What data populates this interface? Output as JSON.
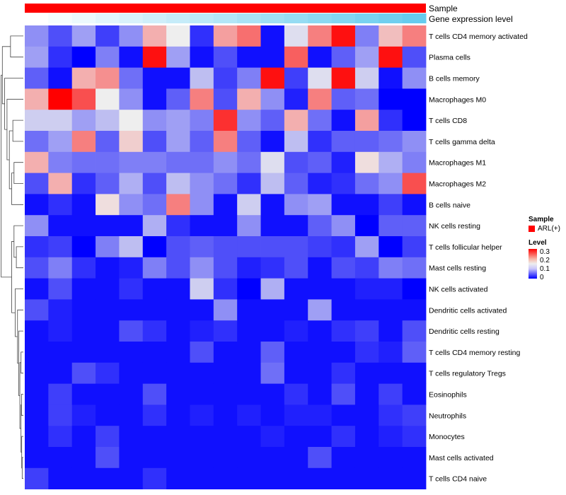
{
  "chart_data": {
    "type": "heatmap",
    "title": "",
    "annotation_tracks": [
      {
        "name": "Sample",
        "color": "#ff0000"
      },
      {
        "name": "Gene expression level",
        "gradient": [
          "#ffffff",
          "#66ccee"
        ]
      }
    ],
    "rows": [
      "T cells CD4 memory activated",
      "Plasma cells",
      "B cells memory",
      "Macrophages M0",
      "T cells CD8",
      "T cells gamma delta",
      "Macrophages M1",
      "Macrophages M2",
      "B cells naive",
      "NK cells resting",
      "T cells follicular helper",
      "Mast cells resting",
      "NK cells activated",
      "Dendritic cells activated",
      "Dendritic cells resting",
      "T cells CD4 memory resting",
      "T cells regulatory  Tregs",
      "Eosinophils",
      "Neutrophils",
      "Monocytes",
      "Mast cells activated",
      "T cells CD4 naive"
    ],
    "values": [
      [
        0.09,
        0.05,
        0.1,
        0.04,
        0.09,
        0.19,
        0.15,
        0.03,
        0.2,
        0.23,
        0.01,
        0.14,
        0.22,
        0.29,
        0.08,
        0.18,
        0.22
      ],
      [
        0.1,
        0.03,
        0.0,
        0.08,
        0.01,
        0.29,
        0.1,
        0.01,
        0.05,
        0.01,
        0.01,
        0.24,
        0.01,
        0.06,
        0.1,
        0.29,
        0.05
      ],
      [
        0.06,
        0.01,
        0.19,
        0.21,
        0.07,
        0.01,
        0.01,
        0.12,
        0.04,
        0.08,
        0.29,
        0.04,
        0.14,
        0.29,
        0.13,
        0.01,
        0.09
      ],
      [
        0.19,
        0.3,
        0.25,
        0.15,
        0.09,
        0.01,
        0.06,
        0.22,
        0.05,
        0.19,
        0.09,
        0.02,
        0.22,
        0.06,
        0.07,
        0.0,
        0.0
      ],
      [
        0.13,
        0.13,
        0.1,
        0.12,
        0.15,
        0.09,
        0.1,
        0.08,
        0.27,
        0.09,
        0.06,
        0.19,
        0.07,
        0.01,
        0.2,
        0.03,
        0.0
      ],
      [
        0.07,
        0.1,
        0.22,
        0.06,
        0.17,
        0.05,
        0.1,
        0.06,
        0.22,
        0.06,
        0.01,
        0.12,
        0.03,
        0.06,
        0.06,
        0.07,
        0.09
      ],
      [
        0.19,
        0.08,
        0.07,
        0.07,
        0.08,
        0.08,
        0.07,
        0.07,
        0.09,
        0.07,
        0.14,
        0.05,
        0.06,
        0.02,
        0.16,
        0.11,
        0.08
      ],
      [
        0.05,
        0.19,
        0.03,
        0.06,
        0.11,
        0.05,
        0.12,
        0.09,
        0.07,
        0.03,
        0.12,
        0.06,
        0.02,
        0.03,
        0.07,
        0.09,
        0.25
      ],
      [
        0.01,
        0.03,
        0.01,
        0.16,
        0.09,
        0.07,
        0.22,
        0.09,
        0.01,
        0.13,
        0.01,
        0.09,
        0.1,
        0.01,
        0.01,
        0.04,
        0.01
      ],
      [
        0.09,
        0.01,
        0.01,
        0.01,
        0.01,
        0.11,
        0.03,
        0.01,
        0.01,
        0.09,
        0.01,
        0.01,
        0.06,
        0.09,
        0.0,
        0.06,
        0.06
      ],
      [
        0.03,
        0.04,
        0.0,
        0.08,
        0.12,
        0.0,
        0.05,
        0.06,
        0.05,
        0.05,
        0.05,
        0.05,
        0.04,
        0.03,
        0.1,
        0.0,
        0.04
      ],
      [
        0.05,
        0.08,
        0.03,
        0.01,
        0.02,
        0.08,
        0.05,
        0.09,
        0.05,
        0.02,
        0.03,
        0.05,
        0.01,
        0.05,
        0.04,
        0.08,
        0.07
      ],
      [
        0.01,
        0.05,
        0.01,
        0.01,
        0.03,
        0.01,
        0.01,
        0.13,
        0.03,
        0.0,
        0.11,
        0.01,
        0.01,
        0.01,
        0.02,
        0.02,
        0.0
      ],
      [
        0.05,
        0.02,
        0.01,
        0.01,
        0.01,
        0.01,
        0.01,
        0.01,
        0.09,
        0.01,
        0.01,
        0.01,
        0.1,
        0.01,
        0.01,
        0.01,
        0.01
      ],
      [
        0.01,
        0.02,
        0.01,
        0.01,
        0.05,
        0.03,
        0.01,
        0.02,
        0.03,
        0.01,
        0.01,
        0.02,
        0.01,
        0.03,
        0.04,
        0.01,
        0.05
      ],
      [
        0.01,
        0.01,
        0.01,
        0.01,
        0.01,
        0.01,
        0.01,
        0.05,
        0.01,
        0.01,
        0.06,
        0.01,
        0.01,
        0.01,
        0.03,
        0.02,
        0.06
      ],
      [
        0.01,
        0.01,
        0.05,
        0.03,
        0.01,
        0.01,
        0.01,
        0.01,
        0.01,
        0.01,
        0.07,
        0.01,
        0.01,
        0.03,
        0.01,
        0.01,
        0.01
      ],
      [
        0.01,
        0.04,
        0.01,
        0.01,
        0.01,
        0.05,
        0.01,
        0.01,
        0.01,
        0.01,
        0.01,
        0.03,
        0.01,
        0.05,
        0.01,
        0.04,
        0.01
      ],
      [
        0.01,
        0.04,
        0.02,
        0.01,
        0.01,
        0.03,
        0.01,
        0.02,
        0.01,
        0.02,
        0.01,
        0.02,
        0.02,
        0.01,
        0.01,
        0.03,
        0.04
      ],
      [
        0.01,
        0.03,
        0.01,
        0.04,
        0.01,
        0.01,
        0.01,
        0.01,
        0.01,
        0.01,
        0.02,
        0.01,
        0.01,
        0.03,
        0.01,
        0.02,
        0.03
      ],
      [
        0.01,
        0.01,
        0.01,
        0.05,
        0.01,
        0.01,
        0.01,
        0.01,
        0.01,
        0.01,
        0.01,
        0.01,
        0.05,
        0.01,
        0.01,
        0.01,
        0.01
      ],
      [
        0.04,
        0.01,
        0.01,
        0.01,
        0.01,
        0.03,
        0.01,
        0.01,
        0.01,
        0.01,
        0.01,
        0.01,
        0.01,
        0.01,
        0.01,
        0.01,
        0.01
      ]
    ],
    "color_scale": {
      "min": 0,
      "mid": 0.15,
      "max": 0.3,
      "low": "#0000ff",
      "middle": "#eeeeee",
      "high": "#ff0000"
    },
    "legend": {
      "sample_title": "Sample",
      "sample_item": "ARL(+)",
      "sample_color": "#ff0000",
      "level_title": "Level",
      "level_ticks": [
        "0.3",
        "0.2",
        "0.1",
        "0"
      ]
    }
  }
}
